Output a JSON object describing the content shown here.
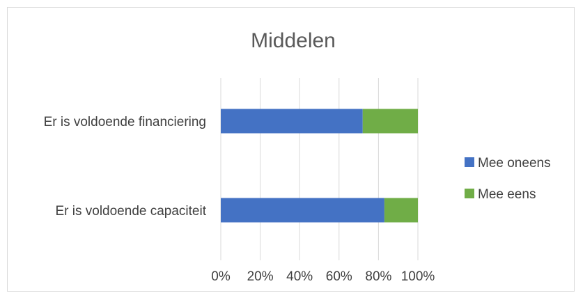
{
  "chart_data": {
    "type": "bar",
    "orientation": "horizontal",
    "stacked": true,
    "title": "Middelen",
    "categories": [
      "Er is voldoende financiering",
      "Er is voldoende capaciteit"
    ],
    "series": [
      {
        "name": "Mee oneens",
        "color": "#4472c4",
        "values": [
          72,
          83
        ]
      },
      {
        "name": "Mee eens",
        "color": "#70ad47",
        "values": [
          28,
          17
        ]
      }
    ],
    "xlim": [
      0,
      100
    ],
    "x_ticks": [
      "0%",
      "20%",
      "40%",
      "60%",
      "80%",
      "100%"
    ],
    "grid": true,
    "legend_position": "right"
  },
  "colors": {
    "grid": "#d9d9d9",
    "text": "#404040"
  }
}
